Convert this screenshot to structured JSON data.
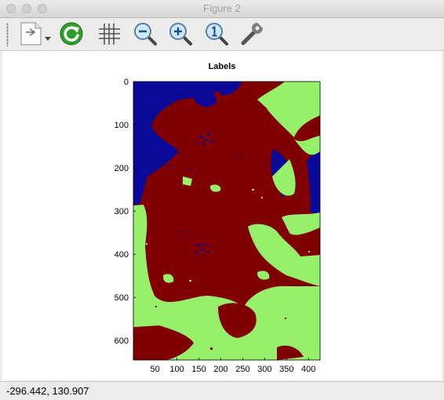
{
  "window": {
    "title": "Figure 2"
  },
  "toolbar": {
    "buttons": [
      {
        "name": "new-figure-button",
        "icon": "document-menu-icon"
      },
      {
        "name": "refresh-button",
        "icon": "refresh-icon"
      },
      {
        "name": "grid-button",
        "icon": "grid-icon"
      },
      {
        "name": "zoom-out-button",
        "icon": "zoom-out-icon"
      },
      {
        "name": "zoom-in-button",
        "icon": "zoom-in-icon"
      },
      {
        "name": "zoom-reset-button",
        "icon": "zoom-1-icon"
      },
      {
        "name": "settings-button",
        "icon": "wrench-icon"
      }
    ]
  },
  "figure": {
    "title": "Labels",
    "xticks": [
      "50",
      "100",
      "150",
      "200",
      "250",
      "300",
      "350",
      "400"
    ],
    "yticks": [
      "0",
      "100",
      "200",
      "300",
      "400",
      "500",
      "600"
    ]
  },
  "colors": {
    "label_1": "#0a0a9a",
    "label_2": "#800000",
    "label_3": "#96f06a"
  },
  "status": {
    "coords": "-296.442,  130.907"
  }
}
